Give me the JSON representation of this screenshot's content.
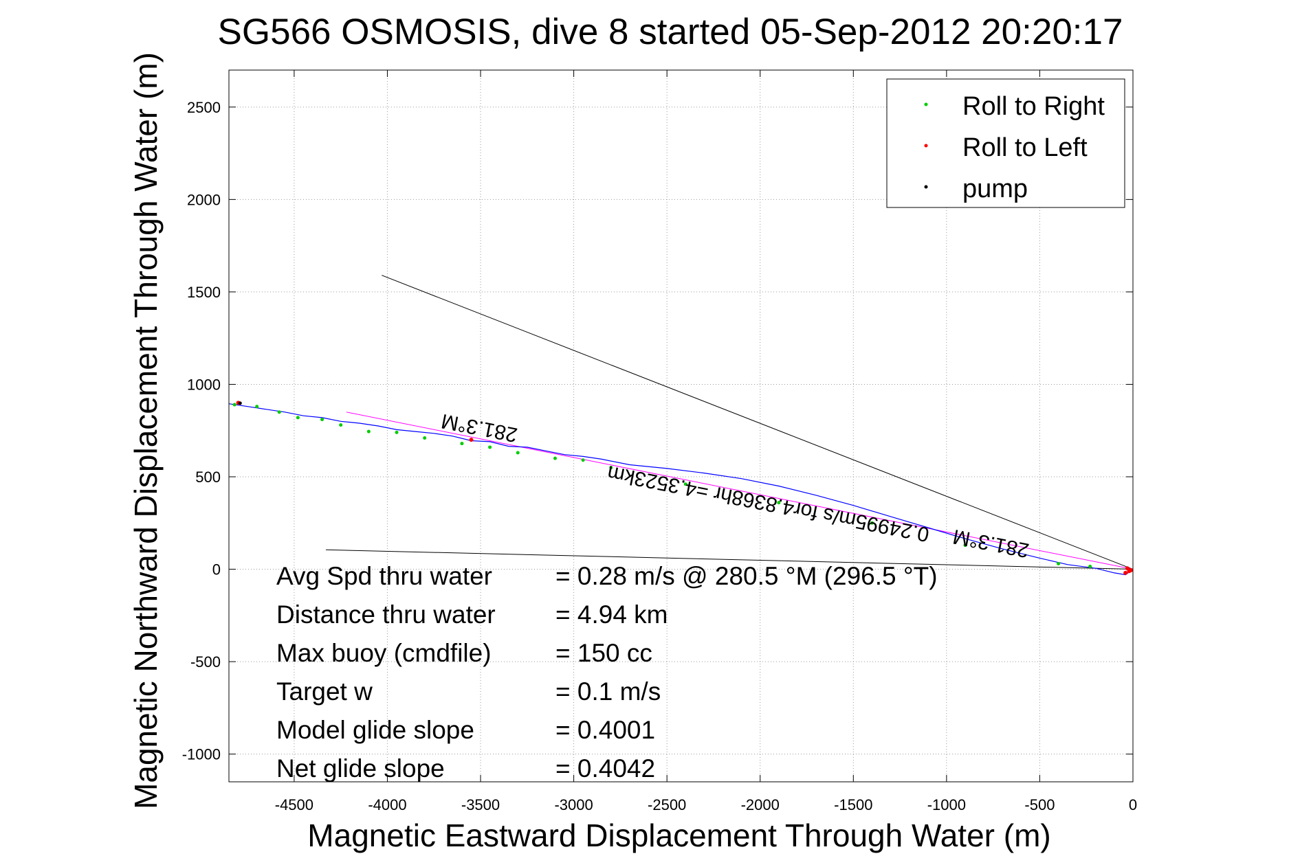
{
  "chart_data": {
    "type": "line",
    "title": "SG566 OSMOSIS, dive 8 started 05-Sep-2012 20:20:17",
    "xlabel": "Magnetic Eastward Displacement Through Water (m)",
    "ylabel": "Magnetic Northward Displacement Through Water (m)",
    "xlim": [
      -4850,
      0
    ],
    "ylim": [
      -1150,
      2700
    ],
    "xticks": [
      -4500,
      -4000,
      -3500,
      -3000,
      -2500,
      -2000,
      -1500,
      -1000,
      -500,
      0
    ],
    "yticks": [
      -1000,
      -500,
      0,
      500,
      1000,
      1500,
      2000,
      2500
    ],
    "xtick_labels": [
      "-4500",
      "-4000",
      "-3500",
      "-3000",
      "-2500",
      "-2000",
      "-1500",
      "-1000",
      "-500",
      "0"
    ],
    "ytick_labels": [
      "-1000",
      "-500",
      "0",
      "500",
      "1000",
      "1500",
      "2000",
      "2500"
    ],
    "grid": true,
    "legend_position": "top-right",
    "legend": [
      {
        "label": "Roll to Right",
        "color": "#00cc00"
      },
      {
        "label": "Roll to Left",
        "color": "#ff0000"
      },
      {
        "label": "pump",
        "color": "#000000"
      }
    ],
    "track": {
      "color": "#0000ff",
      "points": [
        [
          0,
          0
        ],
        [
          -40,
          -30
        ],
        [
          -100,
          -20
        ],
        [
          -200,
          5
        ],
        [
          -350,
          25
        ],
        [
          -500,
          60
        ],
        [
          -700,
          110
        ],
        [
          -900,
          165
        ],
        [
          -1100,
          225
        ],
        [
          -1300,
          285
        ],
        [
          -1500,
          345
        ],
        [
          -1700,
          400
        ],
        [
          -1900,
          450
        ],
        [
          -2100,
          490
        ],
        [
          -2300,
          520
        ],
        [
          -2500,
          545
        ],
        [
          -2700,
          565
        ],
        [
          -2850,
          595
        ],
        [
          -2950,
          610
        ],
        [
          -3050,
          620
        ],
        [
          -3150,
          640
        ],
        [
          -3250,
          660
        ],
        [
          -3350,
          665
        ],
        [
          -3450,
          690
        ],
        [
          -3550,
          695
        ],
        [
          -3650,
          720
        ],
        [
          -3750,
          735
        ],
        [
          -3850,
          745
        ],
        [
          -3950,
          755
        ],
        [
          -4050,
          775
        ],
        [
          -4150,
          790
        ],
        [
          -4250,
          800
        ],
        [
          -4350,
          820
        ],
        [
          -4450,
          830
        ],
        [
          -4550,
          850
        ],
        [
          -4650,
          865
        ],
        [
          -4750,
          880
        ],
        [
          -4850,
          895
        ]
      ]
    },
    "roll_right_points": [
      [
        -4820,
        890
      ],
      [
        -4700,
        880
      ],
      [
        -4580,
        850
      ],
      [
        -4480,
        820
      ],
      [
        -4350,
        810
      ],
      [
        -4250,
        780
      ],
      [
        -4100,
        745
      ],
      [
        -3950,
        740
      ],
      [
        -3800,
        710
      ],
      [
        -3600,
        680
      ],
      [
        -3450,
        660
      ],
      [
        -3300,
        630
      ],
      [
        -3100,
        600
      ],
      [
        -2950,
        590
      ],
      [
        -2800,
        550
      ],
      [
        -2400,
        460
      ],
      [
        -1900,
        360
      ],
      [
        -1400,
        250
      ],
      [
        -900,
        130
      ],
      [
        -400,
        30
      ],
      [
        -230,
        15
      ]
    ],
    "roll_left_points": [
      [
        -4800,
        900
      ],
      [
        -3550,
        700
      ],
      [
        -20,
        -10
      ],
      [
        -40,
        -20
      ],
      [
        -30,
        5
      ],
      [
        -10,
        -5
      ]
    ],
    "pump_points": [
      [
        -4790,
        898
      ]
    ],
    "lines": [
      {
        "name": "heading",
        "color": "#ff00ff",
        "from": [
          0,
          0
        ],
        "to": [
          -4220,
          850
        ]
      },
      {
        "name": "current",
        "color": "#000000",
        "from": [
          0,
          0
        ],
        "to": [
          -4030,
          1590
        ]
      },
      {
        "name": "drift",
        "color": "#000000",
        "from": [
          0,
          0
        ],
        "to": [
          -4330,
          105
        ]
      }
    ],
    "annotations": [
      {
        "text": "281.3°M",
        "x": -3500,
        "y": 800,
        "rotate": 191
      },
      {
        "text": "0.24995m/s for4.8368hr =4.3523km",
        "x": -1950,
        "y": 390,
        "rotate": 191
      },
      {
        "text": "281.3°M",
        "x": -755,
        "y": 175,
        "rotate": 191
      }
    ],
    "summary": [
      {
        "label": "Avg Spd thru water",
        "value": "=  0.28 m/s @ 280.5 °M (296.5 °T)"
      },
      {
        "label": "Distance thru water",
        "value": "=  4.94 km"
      },
      {
        "label": "Max buoy (cmdfile)",
        "value": "= 150 cc"
      },
      {
        "label": "Target w",
        "value": "= 0.1 m/s"
      },
      {
        "label": "Model glide slope",
        "value": "= 0.4001"
      },
      {
        "label": "Net glide slope",
        "value": "= 0.4042"
      }
    ]
  }
}
